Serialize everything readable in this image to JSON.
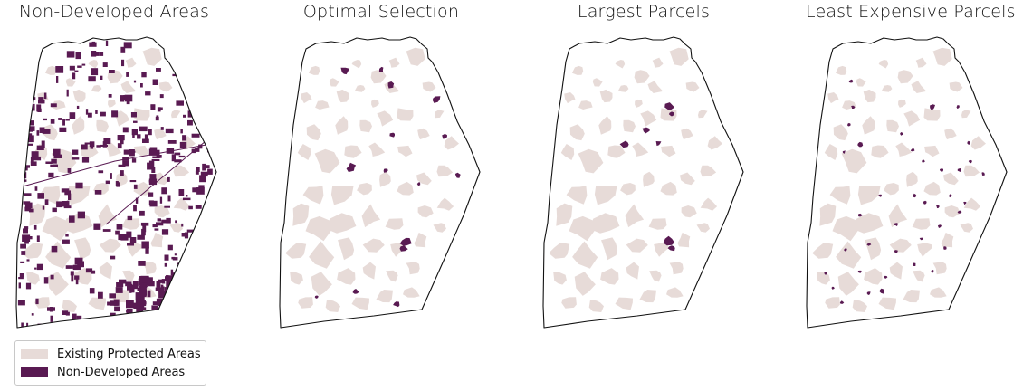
{
  "colors": {
    "protected": "#e7dbd8",
    "selected": "#591a52",
    "outline": "#111111"
  },
  "panels": [
    {
      "id": "non-developed",
      "title": "Non-Developed Areas"
    },
    {
      "id": "optimal",
      "title": "Optimal Selection"
    },
    {
      "id": "largest",
      "title": "Largest Parcels"
    },
    {
      "id": "least-expensive",
      "title": "Least Expensive Parcels"
    }
  ],
  "legend": {
    "items": [
      {
        "label": "Existing Protected Areas",
        "color_key": "protected"
      },
      {
        "label": "Non-Developed Areas",
        "color_key": "selected"
      }
    ]
  }
}
